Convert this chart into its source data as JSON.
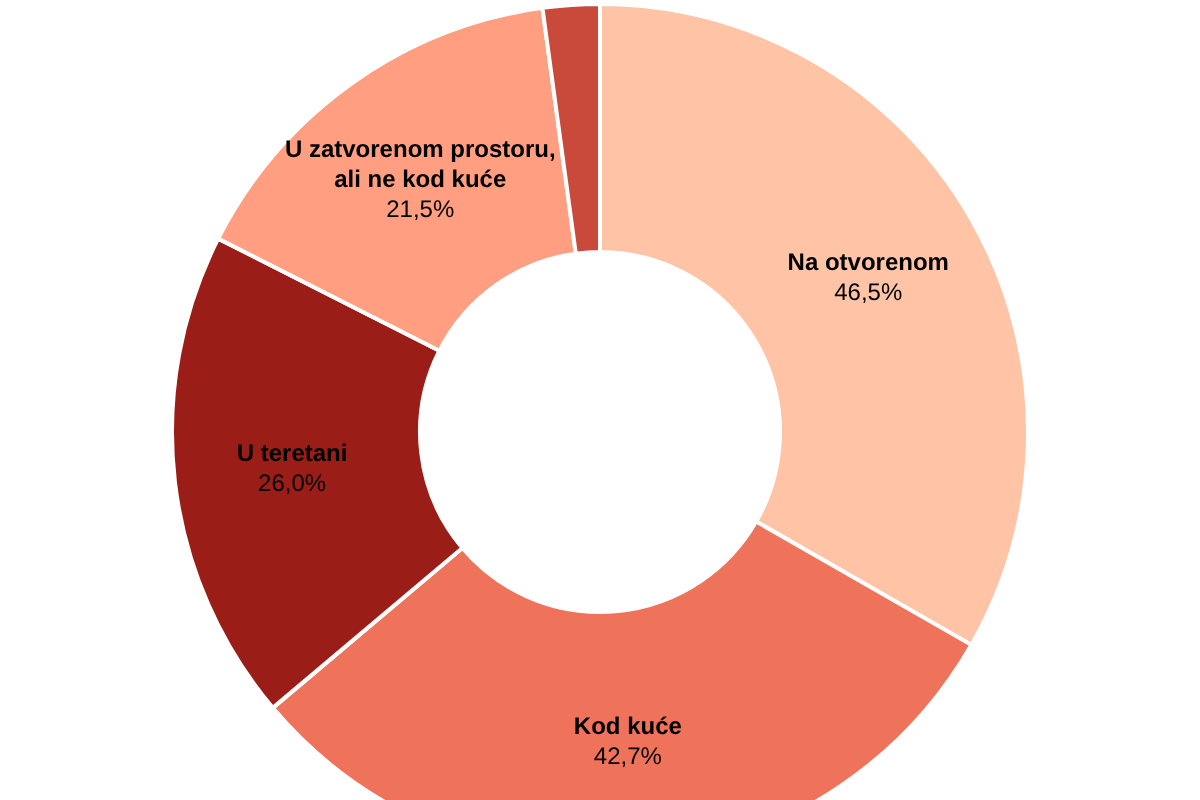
{
  "chart_data": {
    "type": "donut",
    "categories": [
      "Na otvorenom",
      "Kod kuće",
      "U teretani",
      "U zatvorenom prostoru, ali ne kod kuće",
      null
    ],
    "values": [
      46.5,
      42.7,
      26.0,
      21.5,
      3
    ],
    "colors": [
      "#ffc3a6",
      "#ef735b",
      "#9a1e17",
      "#ff9e80",
      "#c94a3b"
    ],
    "value_labels": [
      "46,5%",
      "42,7%",
      "26,0%",
      "21,5%",
      null
    ],
    "legend": false
  }
}
